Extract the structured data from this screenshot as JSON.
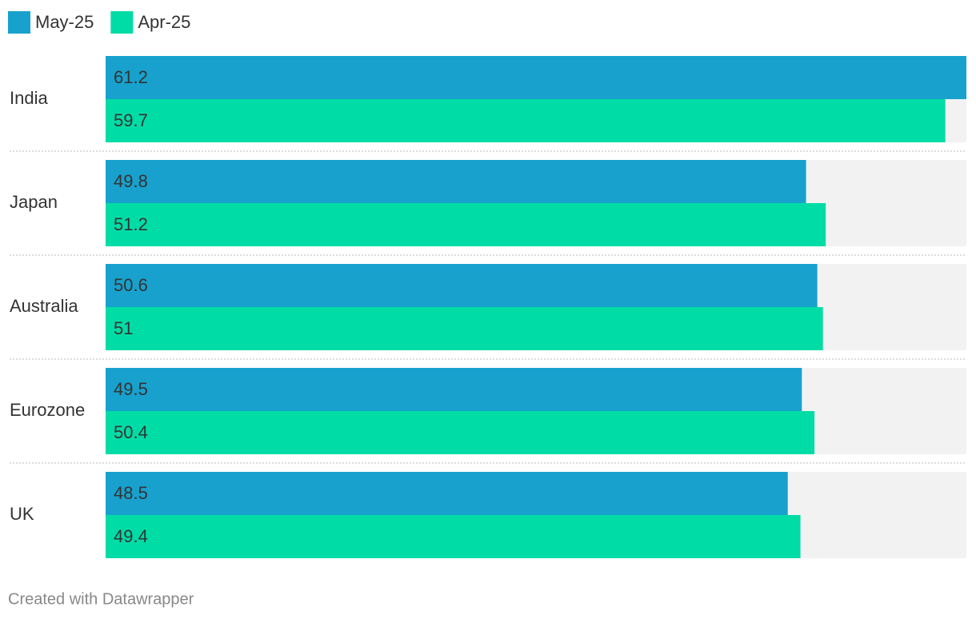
{
  "chart_data": {
    "type": "grouped-bar-horizontal",
    "categories": [
      "India",
      "Japan",
      "Australia",
      "Eurozone",
      "UK"
    ],
    "series": [
      {
        "name": "May-25",
        "color": "#18a1cd",
        "values": [
          61.2,
          49.8,
          50.6,
          49.5,
          48.5
        ]
      },
      {
        "name": "Apr-25",
        "color": "#00dca6",
        "values": [
          59.7,
          51.2,
          51,
          50.4,
          49.4
        ]
      }
    ],
    "xlim": [
      0,
      61.2
    ],
    "credit": "Created with Datawrapper"
  }
}
